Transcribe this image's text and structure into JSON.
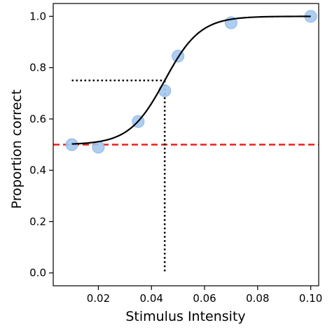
{
  "chart_data": {
    "type": "scatter",
    "xlabel": "Stimulus Intensity",
    "ylabel": "Proportion correct",
    "xlim": [
      0.003,
      0.103
    ],
    "ylim": [
      -0.05,
      1.05
    ],
    "x_ticks": [
      0.02,
      0.04,
      0.06,
      0.08,
      0.1
    ],
    "x_tick_labels": [
      "0.02",
      "0.04",
      "0.06",
      "0.08",
      "0.10"
    ],
    "y_ticks": [
      0.0,
      0.2,
      0.4,
      0.6,
      0.8,
      1.0
    ],
    "y_tick_labels": [
      "0.0",
      "0.2",
      "0.4",
      "0.6",
      "0.8",
      "1.0"
    ],
    "grid": false,
    "points": {
      "x": [
        0.01,
        0.02,
        0.035,
        0.045,
        0.05,
        0.07,
        0.1
      ],
      "y": [
        0.5,
        0.49,
        0.59,
        0.71,
        0.845,
        0.975,
        1.0
      ],
      "color": "#a4c8f0",
      "edge_color": "#8fb6e8"
    },
    "fit_curve": {
      "type": "sigmoid",
      "lower": 0.5,
      "upper": 1.0,
      "midpoint": 0.045,
      "slope": 150,
      "x_range": [
        0.01,
        0.1
      ],
      "color": "#000000"
    },
    "chance_line": {
      "y": 0.5,
      "color": "#e8201e",
      "style": "dashed"
    },
    "threshold_markers": {
      "x": 0.045,
      "y": 0.75,
      "horizontal_from_x": 0.01,
      "vertical_down_to_y": 0.0,
      "color": "#000000",
      "style": "dotted"
    }
  }
}
